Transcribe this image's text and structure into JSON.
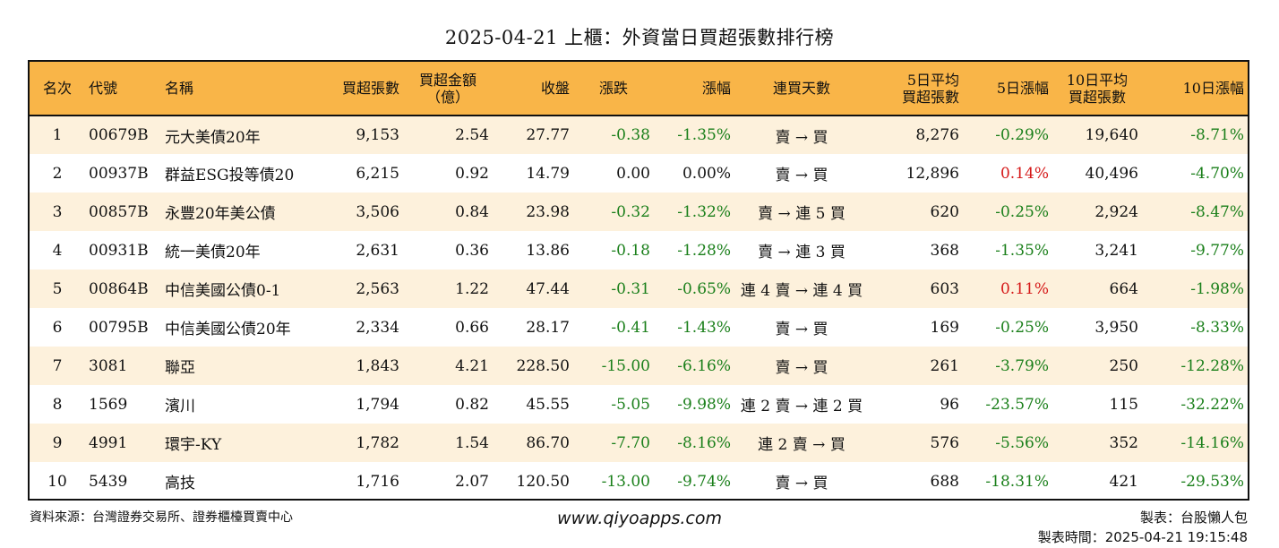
{
  "title": "2025-04-21 上櫃：外資當日買超張數排行榜",
  "headers": [
    "名次",
    "代號",
    "名稱",
    "買超張數",
    "買超金額\n（億）",
    "收盤",
    "漲跌",
    "漲幅",
    "連買天數",
    "5日平均\n買超張數",
    "5日漲幅",
    "10日平均\n買超張數",
    "10日漲幅"
  ],
  "colors": {
    "header_bg": "#f9b548",
    "row_alt_bg": "#fdf1dc",
    "negative": "#1a7f1a",
    "positive": "#d51818"
  },
  "rows": [
    {
      "rank": "1",
      "code": "00679B",
      "name": "元大美債20年",
      "net": "9,153",
      "amount": "2.54",
      "close": "27.77",
      "chg": "-0.38",
      "chg_pct": "-1.35%",
      "streak": "賣 → 買",
      "avg5": "8,276",
      "pct5": "-0.29%",
      "avg10": "19,640",
      "pct10": "-8.71%"
    },
    {
      "rank": "2",
      "code": "00937B",
      "name": "群益ESG投等債20",
      "net": "6,215",
      "amount": "0.92",
      "close": "14.79",
      "chg": "0.00",
      "chg_pct": "0.00%",
      "streak": "賣 → 買",
      "avg5": "12,896",
      "pct5": "0.14%",
      "avg10": "40,496",
      "pct10": "-4.70%"
    },
    {
      "rank": "3",
      "code": "00857B",
      "name": "永豐20年美公債",
      "net": "3,506",
      "amount": "0.84",
      "close": "23.98",
      "chg": "-0.32",
      "chg_pct": "-1.32%",
      "streak": "賣 → 連 5 買",
      "avg5": "620",
      "pct5": "-0.25%",
      "avg10": "2,924",
      "pct10": "-8.47%"
    },
    {
      "rank": "4",
      "code": "00931B",
      "name": "統一美債20年",
      "net": "2,631",
      "amount": "0.36",
      "close": "13.86",
      "chg": "-0.18",
      "chg_pct": "-1.28%",
      "streak": "賣 → 連 3 買",
      "avg5": "368",
      "pct5": "-1.35%",
      "avg10": "3,241",
      "pct10": "-9.77%"
    },
    {
      "rank": "5",
      "code": "00864B",
      "name": "中信美國公債0-1",
      "net": "2,563",
      "amount": "1.22",
      "close": "47.44",
      "chg": "-0.31",
      "chg_pct": "-0.65%",
      "streak": "連 4 賣 → 連 4 買",
      "avg5": "603",
      "pct5": "0.11%",
      "avg10": "664",
      "pct10": "-1.98%"
    },
    {
      "rank": "6",
      "code": "00795B",
      "name": "中信美國公債20年",
      "net": "2,334",
      "amount": "0.66",
      "close": "28.17",
      "chg": "-0.41",
      "chg_pct": "-1.43%",
      "streak": "賣 → 買",
      "avg5": "169",
      "pct5": "-0.25%",
      "avg10": "3,950",
      "pct10": "-8.33%"
    },
    {
      "rank": "7",
      "code": "3081",
      "name": "聯亞",
      "net": "1,843",
      "amount": "4.21",
      "close": "228.50",
      "chg": "-15.00",
      "chg_pct": "-6.16%",
      "streak": "賣 → 買",
      "avg5": "261",
      "pct5": "-3.79%",
      "avg10": "250",
      "pct10": "-12.28%"
    },
    {
      "rank": "8",
      "code": "1569",
      "name": "濱川",
      "net": "1,794",
      "amount": "0.82",
      "close": "45.55",
      "chg": "-5.05",
      "chg_pct": "-9.98%",
      "streak": "連 2 賣 → 連 2 買",
      "avg5": "96",
      "pct5": "-23.57%",
      "avg10": "115",
      "pct10": "-32.22%"
    },
    {
      "rank": "9",
      "code": "4991",
      "name": "環宇-KY",
      "net": "1,782",
      "amount": "1.54",
      "close": "86.70",
      "chg": "-7.70",
      "chg_pct": "-8.16%",
      "streak": "連 2 賣 → 買",
      "avg5": "576",
      "pct5": "-5.56%",
      "avg10": "352",
      "pct10": "-14.16%"
    },
    {
      "rank": "10",
      "code": "5439",
      "name": "高技",
      "net": "1,716",
      "amount": "2.07",
      "close": "120.50",
      "chg": "-13.00",
      "chg_pct": "-9.74%",
      "streak": "賣 → 買",
      "avg5": "688",
      "pct5": "-18.31%",
      "avg10": "421",
      "pct10": "-29.53%"
    }
  ],
  "footer": {
    "source": "資料來源：台灣證券交易所、證券櫃檯買賣中心",
    "website": "www.qiyoapps.com",
    "maker": "製表：台股懶人包",
    "made_time": "製表時間：2025-04-21 19:15:48"
  }
}
